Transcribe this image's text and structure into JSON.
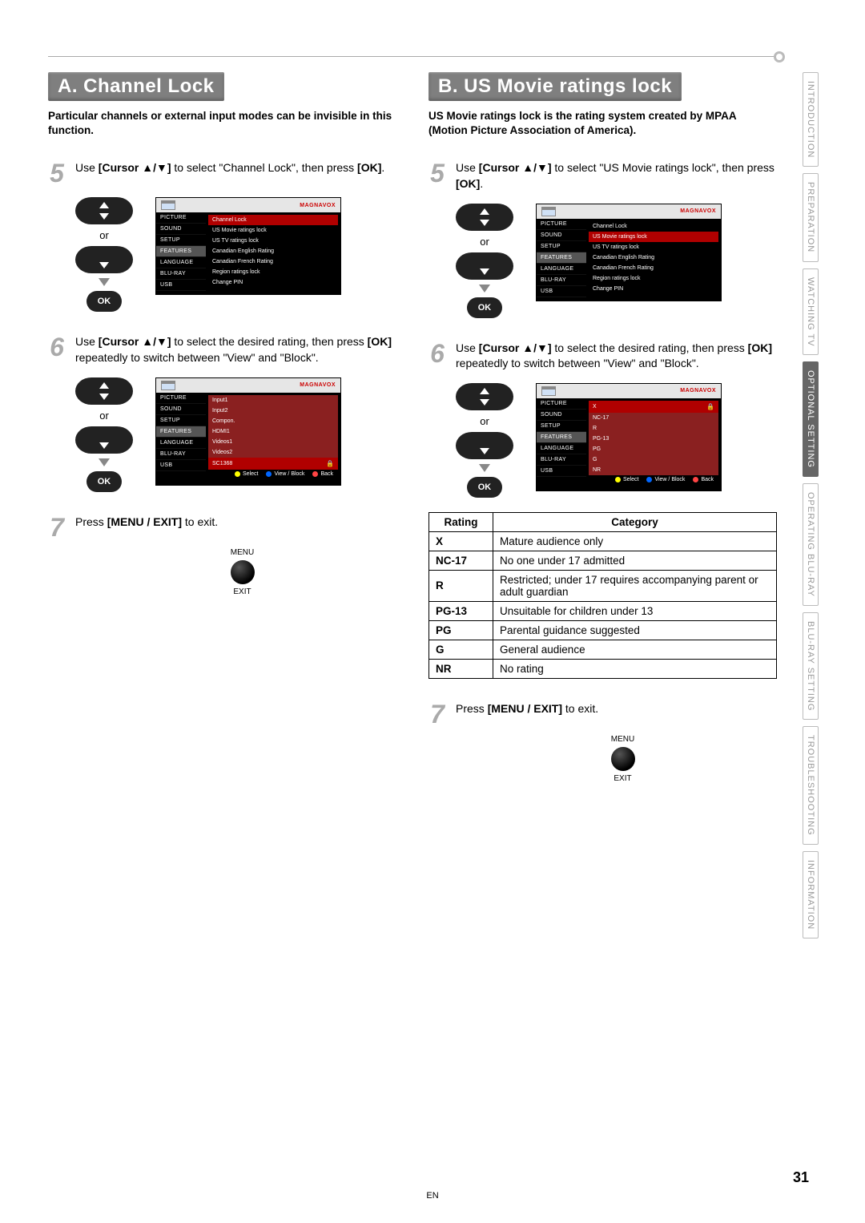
{
  "page": {
    "number": "31",
    "lang": "EN"
  },
  "tabs": {
    "items": [
      "INTRODUCTION",
      "PREPARATION",
      "WATCHING TV",
      "OPTIONAL SETTING",
      "OPERATING BLU-RAY",
      "BLU-RAY SETTING",
      "TROUBLESHOOTING",
      "INFORMATION"
    ],
    "active_index": 3
  },
  "colA": {
    "title": "A.  Channel Lock",
    "subtitle": "Particular channels or external input modes can be invisible in this function.",
    "step5": {
      "num": "5",
      "pre": "Use ",
      "bold1": "[Cursor ▲/▼]",
      "mid": " to select \"Channel Lock\", then press ",
      "bold2": "[OK]",
      "post": "."
    },
    "step6": {
      "num": "6",
      "pre": "Use ",
      "bold1": "[Cursor ▲/▼]",
      "mid": " to select the desired rating, then press ",
      "bold2": "[OK]",
      "post": " repeatedly to switch between \"View\" and \"Block\"."
    },
    "step7": {
      "num": "7",
      "pre": "Press ",
      "bold1": "[MENU / EXIT]",
      "post": " to exit."
    }
  },
  "colB": {
    "title": "B. US Movie ratings lock",
    "subtitle": "US Movie ratings lock is the rating system created by MPAA (Motion Picture Association of America).",
    "step5": {
      "num": "5",
      "pre": "Use ",
      "bold1": "[Cursor ▲/▼]",
      "mid": " to select \"US Movie ratings lock\", then press ",
      "bold2": "[OK]",
      "post": "."
    },
    "step6": {
      "num": "6",
      "pre": "Use ",
      "bold1": "[Cursor ▲/▼]",
      "mid": " to select the desired rating, then press ",
      "bold2": "[OK]",
      "post": " repeatedly to switch between \"View\" and \"Block\"."
    },
    "step7": {
      "num": "7",
      "pre": "Press ",
      "bold1": "[MENU / EXIT]",
      "post": " to exit."
    }
  },
  "remote": {
    "or": "or",
    "ok": "OK"
  },
  "menuexit": {
    "top": "MENU",
    "bottom": "EXIT"
  },
  "osd": {
    "brand": "MAGNAVOX",
    "leftMenu": [
      "PICTURE",
      "SOUND",
      "SETUP",
      "FEATURES",
      "LANGUAGE",
      "BLU-RAY",
      "USB"
    ],
    "features_index": 3,
    "rightA5": [
      "Channel Lock",
      "US Movie ratings lock",
      "US TV ratings lock",
      "Canadian English Rating",
      "Canadian French Rating",
      "Region ratings lock",
      "Change PIN"
    ],
    "rightA5_sel": 0,
    "rightB5_sel": 1,
    "rightA6": [
      "Input1",
      "Input2",
      "Compon.",
      "HDMI1",
      "Videos1",
      "Videos2",
      "SC1368"
    ],
    "rightB6": [
      "X",
      "NC-17",
      "R",
      "PG-13",
      "PG",
      "G",
      "NR"
    ],
    "footer": {
      "select": "Select",
      "viewblock": "View / Block",
      "back": "Back"
    }
  },
  "ratings": {
    "head": {
      "r": "Rating",
      "c": "Category"
    },
    "rows": [
      {
        "r": "X",
        "c": "Mature audience only"
      },
      {
        "r": "NC-17",
        "c": "No one under 17 admitted"
      },
      {
        "r": "R",
        "c": "Restricted; under 17 requires accompanying parent or adult guardian"
      },
      {
        "r": "PG-13",
        "c": "Unsuitable for children under 13"
      },
      {
        "r": "PG",
        "c": "Parental guidance suggested"
      },
      {
        "r": "G",
        "c": "General audience"
      },
      {
        "r": "NR",
        "c": "No rating"
      }
    ]
  }
}
